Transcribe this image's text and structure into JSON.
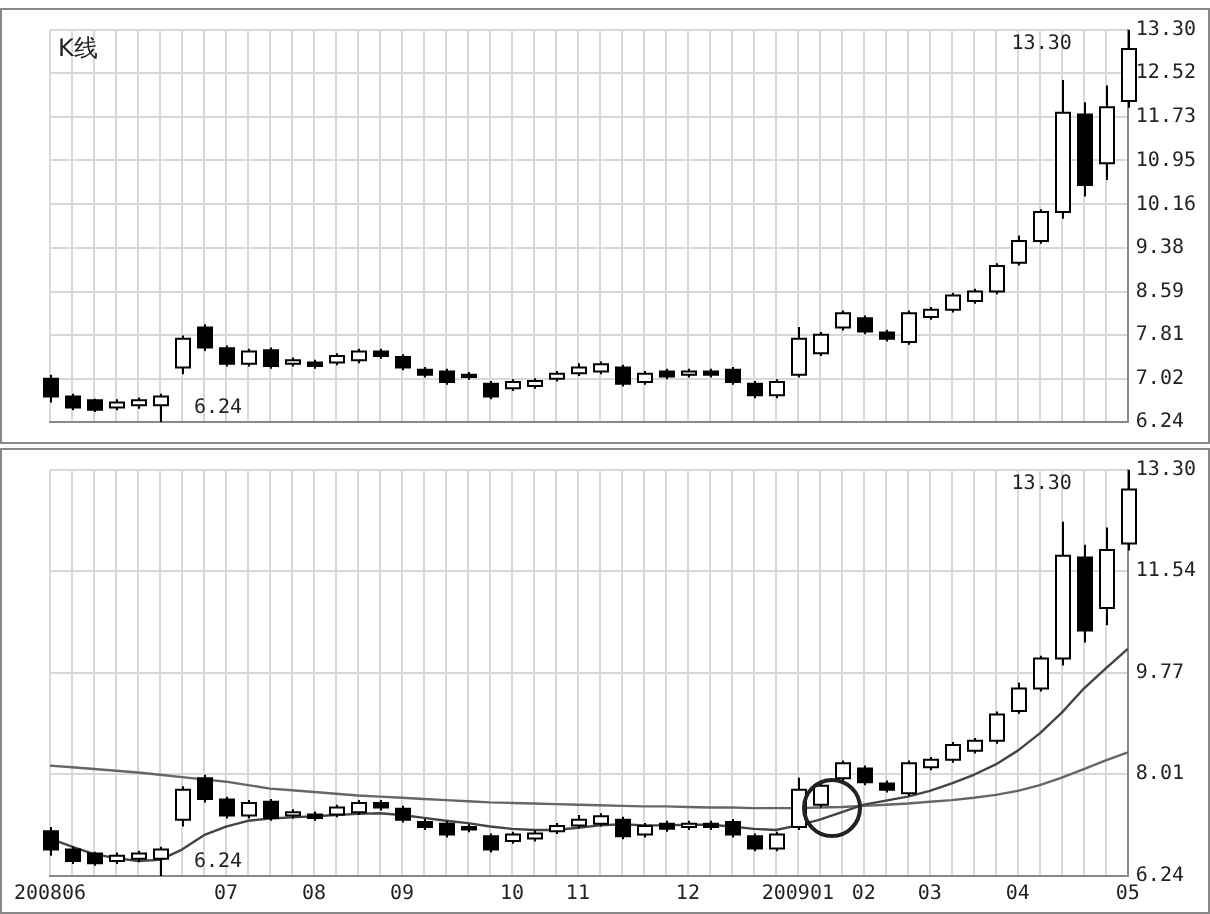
{
  "chart_data": [
    {
      "type": "candlestick",
      "title": "K线",
      "color": "#000000",
      "grid": true,
      "legend": false,
      "tick_labels": "y",
      "colors": [
        "#000000",
        "#000000",
        "#000000",
        "#ffffff",
        "#ffffff",
        "#ffffff",
        "#ffffff",
        "#000000",
        "#000000",
        "#ffffff",
        "#000000",
        "#ffffff",
        "#000000",
        "#ffffff",
        "#ffffff",
        "#000000",
        "#000000",
        "#000000",
        "#000000",
        "#000000",
        "#000000",
        "#ffffff",
        "#ffffff",
        "#ffffff",
        "#ffffff",
        "#ffffff",
        "#000000",
        "#ffffff",
        "#000000",
        "#ffffff",
        "#000000",
        "#000000",
        "#000000",
        "#ffffff",
        "#ffffff",
        "#ffffff",
        "#ffffff",
        "#000000",
        "#000000",
        "#ffffff",
        "#ffffff",
        "#ffffff",
        "#ffffff",
        "#ffffff",
        "#ffffff",
        "#ffffff",
        "#ffffff",
        "#000000",
        "#ffffff",
        "#ffffff"
      ],
      "categories": [
        "200806",
        null,
        null,
        null,
        null,
        null,
        null,
        null,
        "07",
        null,
        null,
        null,
        "08",
        null,
        null,
        null,
        "09",
        null,
        null,
        null,
        null,
        "10",
        null,
        null,
        "11",
        null,
        null,
        null,
        null,
        "12",
        null,
        null,
        null,
        null,
        "200901",
        null,
        null,
        "02",
        null,
        null,
        "03",
        null,
        null,
        null,
        "04",
        null,
        null,
        null,
        null,
        "05"
      ],
      "ohlc": [
        [
          7.02,
          7.09,
          6.59,
          6.7
        ],
        [
          6.7,
          6.75,
          6.45,
          6.5
        ],
        [
          6.63,
          6.66,
          6.42,
          6.46
        ],
        [
          6.5,
          6.65,
          6.45,
          6.59
        ],
        [
          6.54,
          6.68,
          6.48,
          6.63
        ],
        [
          6.54,
          6.75,
          6.24,
          6.7
        ],
        [
          7.22,
          7.8,
          7.1,
          7.74
        ],
        [
          7.94,
          8.0,
          7.52,
          7.58
        ],
        [
          7.57,
          7.62,
          7.24,
          7.29
        ],
        [
          7.29,
          7.56,
          7.24,
          7.51
        ],
        [
          7.53,
          7.58,
          7.2,
          7.25
        ],
        [
          7.29,
          7.4,
          7.24,
          7.35
        ],
        [
          7.31,
          7.36,
          7.2,
          7.25
        ],
        [
          7.31,
          7.48,
          7.26,
          7.43
        ],
        [
          7.35,
          7.56,
          7.3,
          7.51
        ],
        [
          7.51,
          7.56,
          7.38,
          7.43
        ],
        [
          7.41,
          7.46,
          7.17,
          7.22
        ],
        [
          7.18,
          7.23,
          7.04,
          7.09
        ],
        [
          7.15,
          7.2,
          6.91,
          6.96
        ],
        [
          7.09,
          7.14,
          7.0,
          7.05
        ],
        [
          6.93,
          6.98,
          6.65,
          6.7
        ],
        [
          6.85,
          7.01,
          6.8,
          6.96
        ],
        [
          6.89,
          7.03,
          6.84,
          6.98
        ],
        [
          7.02,
          7.16,
          6.97,
          7.11
        ],
        [
          7.12,
          7.3,
          7.07,
          7.22
        ],
        [
          7.15,
          7.33,
          7.1,
          7.28
        ],
        [
          7.22,
          7.27,
          6.88,
          6.93
        ],
        [
          6.96,
          7.16,
          6.91,
          7.11
        ],
        [
          7.15,
          7.2,
          7.01,
          7.06
        ],
        [
          7.09,
          7.2,
          7.04,
          7.15
        ],
        [
          7.15,
          7.2,
          7.04,
          7.09
        ],
        [
          7.18,
          7.23,
          6.91,
          6.96
        ],
        [
          6.93,
          6.98,
          6.67,
          6.72
        ],
        [
          6.72,
          7.01,
          6.67,
          6.96
        ],
        [
          7.09,
          7.95,
          7.04,
          7.74
        ],
        [
          7.48,
          7.86,
          7.43,
          7.81
        ],
        [
          7.94,
          8.25,
          7.89,
          8.2
        ],
        [
          8.11,
          8.16,
          7.82,
          7.87
        ],
        [
          7.85,
          7.9,
          7.69,
          7.74
        ],
        [
          7.68,
          8.25,
          7.63,
          8.2
        ],
        [
          8.13,
          8.31,
          8.08,
          8.26
        ],
        [
          8.26,
          8.57,
          8.21,
          8.52
        ],
        [
          8.42,
          8.64,
          8.37,
          8.59
        ],
        [
          8.59,
          9.1,
          8.54,
          9.05
        ],
        [
          9.11,
          9.6,
          9.06,
          9.5
        ],
        [
          9.5,
          10.07,
          9.45,
          10.02
        ],
        [
          10.02,
          12.4,
          9.9,
          11.81
        ],
        [
          11.78,
          12.0,
          10.3,
          10.51
        ],
        [
          10.9,
          12.3,
          10.6,
          11.91
        ],
        [
          12.02,
          13.3,
          11.9,
          12.96
        ]
      ],
      "ylim": [
        6.24,
        13.3
      ],
      "yticks": [
        6.24,
        7.02,
        7.81,
        8.59,
        9.38,
        10.16,
        10.95,
        11.73,
        12.52,
        {
          "value": 13.3,
          "label": "13.30"
        }
      ],
      "annotations": [
        "6.24",
        "13.30"
      ]
    },
    {
      "type": "candlestick",
      "color": "#000000",
      "grid": true,
      "legend": false,
      "colors": [
        "#000000",
        "#000000",
        "#000000",
        "#ffffff",
        "#ffffff",
        "#ffffff",
        "#ffffff",
        "#000000",
        "#000000",
        "#ffffff",
        "#000000",
        "#ffffff",
        "#000000",
        "#ffffff",
        "#ffffff",
        "#000000",
        "#000000",
        "#000000",
        "#000000",
        "#000000",
        "#000000",
        "#ffffff",
        "#ffffff",
        "#ffffff",
        "#ffffff",
        "#ffffff",
        "#000000",
        "#ffffff",
        "#000000",
        "#ffffff",
        "#000000",
        "#000000",
        "#000000",
        "#ffffff",
        "#ffffff",
        "#ffffff",
        "#ffffff",
        "#000000",
        "#000000",
        "#ffffff",
        "#ffffff",
        "#ffffff",
        "#ffffff",
        "#ffffff",
        "#ffffff",
        "#ffffff",
        "#ffffff",
        "#000000",
        "#ffffff",
        "#ffffff"
      ],
      "categories": [
        "200806",
        null,
        null,
        null,
        null,
        null,
        null,
        null,
        "07",
        null,
        null,
        null,
        "08",
        null,
        null,
        null,
        "09",
        null,
        null,
        null,
        null,
        "10",
        null,
        null,
        "11",
        null,
        null,
        null,
        null,
        "12",
        null,
        null,
        null,
        null,
        "200901",
        null,
        null,
        "02",
        null,
        null,
        "03",
        null,
        null,
        null,
        "04",
        null,
        null,
        null,
        null,
        "05"
      ],
      "ohlc": [
        [
          7.02,
          7.09,
          6.59,
          6.7
        ],
        [
          6.7,
          6.75,
          6.45,
          6.5
        ],
        [
          6.63,
          6.66,
          6.42,
          6.46
        ],
        [
          6.5,
          6.65,
          6.45,
          6.59
        ],
        [
          6.54,
          6.68,
          6.48,
          6.63
        ],
        [
          6.54,
          6.75,
          6.24,
          6.7
        ],
        [
          7.22,
          7.8,
          7.1,
          7.74
        ],
        [
          7.94,
          8.0,
          7.52,
          7.58
        ],
        [
          7.57,
          7.62,
          7.24,
          7.29
        ],
        [
          7.29,
          7.56,
          7.24,
          7.51
        ],
        [
          7.53,
          7.58,
          7.2,
          7.25
        ],
        [
          7.29,
          7.4,
          7.24,
          7.35
        ],
        [
          7.31,
          7.36,
          7.2,
          7.25
        ],
        [
          7.31,
          7.48,
          7.26,
          7.43
        ],
        [
          7.35,
          7.56,
          7.3,
          7.51
        ],
        [
          7.51,
          7.56,
          7.38,
          7.43
        ],
        [
          7.41,
          7.46,
          7.17,
          7.22
        ],
        [
          7.18,
          7.23,
          7.04,
          7.09
        ],
        [
          7.15,
          7.2,
          6.91,
          6.96
        ],
        [
          7.09,
          7.14,
          7.0,
          7.05
        ],
        [
          6.93,
          6.98,
          6.65,
          6.7
        ],
        [
          6.85,
          7.01,
          6.8,
          6.96
        ],
        [
          6.89,
          7.03,
          6.84,
          6.98
        ],
        [
          7.02,
          7.16,
          6.97,
          7.11
        ],
        [
          7.12,
          7.3,
          7.07,
          7.22
        ],
        [
          7.15,
          7.33,
          7.1,
          7.28
        ],
        [
          7.22,
          7.27,
          6.88,
          6.93
        ],
        [
          6.96,
          7.16,
          6.91,
          7.11
        ],
        [
          7.15,
          7.2,
          7.01,
          7.06
        ],
        [
          7.09,
          7.2,
          7.04,
          7.15
        ],
        [
          7.15,
          7.2,
          7.04,
          7.09
        ],
        [
          7.18,
          7.23,
          6.91,
          6.96
        ],
        [
          6.93,
          6.98,
          6.67,
          6.72
        ],
        [
          6.72,
          7.01,
          6.67,
          6.96
        ],
        [
          7.09,
          7.95,
          7.04,
          7.74
        ],
        [
          7.48,
          7.86,
          7.43,
          7.81
        ],
        [
          7.94,
          8.25,
          7.89,
          8.2
        ],
        [
          8.11,
          8.16,
          7.82,
          7.87
        ],
        [
          7.85,
          7.9,
          7.69,
          7.74
        ],
        [
          7.68,
          8.25,
          7.63,
          8.2
        ],
        [
          8.13,
          8.31,
          8.08,
          8.26
        ],
        [
          8.26,
          8.57,
          8.21,
          8.52
        ],
        [
          8.42,
          8.64,
          8.37,
          8.59
        ],
        [
          8.59,
          9.1,
          8.54,
          9.05
        ],
        [
          9.11,
          9.6,
          9.06,
          9.5
        ],
        [
          9.5,
          10.07,
          9.45,
          10.02
        ],
        [
          10.02,
          12.4,
          9.9,
          11.81
        ],
        [
          11.78,
          12.0,
          10.3,
          10.51
        ],
        [
          10.9,
          12.3,
          10.6,
          11.91
        ],
        [
          12.02,
          13.3,
          11.9,
          12.96
        ]
      ],
      "series": [
        {
          "type": "line",
          "color": "#444444",
          "values": [
            6.89,
            6.75,
            6.62,
            6.55,
            6.5,
            6.52,
            6.7,
            6.95,
            7.1,
            7.2,
            7.24,
            7.26,
            7.28,
            7.3,
            7.32,
            7.33,
            7.3,
            7.25,
            7.2,
            7.16,
            7.1,
            7.06,
            7.04,
            7.04,
            7.08,
            7.12,
            7.14,
            7.12,
            7.12,
            7.13,
            7.13,
            7.1,
            7.06,
            7.04,
            7.12,
            7.22,
            7.35,
            7.48,
            7.55,
            7.62,
            7.72,
            7.85,
            8.0,
            8.18,
            8.42,
            8.72,
            9.08,
            9.5,
            9.85,
            10.19
          ]
        },
        {
          "type": "line",
          "color": "#666666",
          "values": [
            8.16,
            8.13,
            8.1,
            8.07,
            8.04,
            8.0,
            7.96,
            7.92,
            7.88,
            7.82,
            7.76,
            7.73,
            7.7,
            7.67,
            7.64,
            7.62,
            7.6,
            7.58,
            7.56,
            7.54,
            7.52,
            7.51,
            7.5,
            7.49,
            7.48,
            7.47,
            7.46,
            7.45,
            7.45,
            7.44,
            7.43,
            7.43,
            7.42,
            7.42,
            7.42,
            7.43,
            7.44,
            7.46,
            7.48,
            7.5,
            7.53,
            7.56,
            7.6,
            7.65,
            7.72,
            7.82,
            7.95,
            8.1,
            8.25,
            8.39
          ]
        }
      ],
      "marker": "none",
      "line_style": "solid",
      "ylim": [
        6.24,
        13.3
      ],
      "yticks": [
        6.24,
        8.01,
        9.77,
        11.54,
        {
          "value": 13.3,
          "label": "13.30"
        }
      ],
      "annotations": [
        "6.24",
        "13.30"
      ]
    }
  ]
}
